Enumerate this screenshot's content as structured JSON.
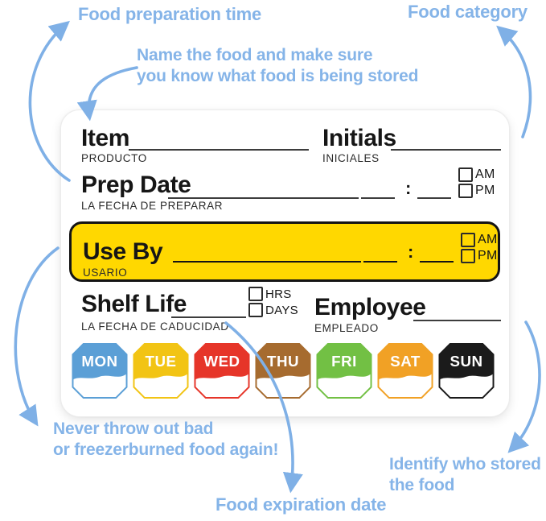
{
  "annotations": {
    "food_preparation_time": "Food preparation time",
    "food_category": "Food category",
    "name_food_line1": "Name the food and make sure",
    "name_food_line2": "you know what food is being stored",
    "never_throw_line1": "Never throw out bad",
    "never_throw_line2": "or freezerburned food again!",
    "identify_line1": "Identify who stored",
    "identify_line2": "the food",
    "food_expiration_date": "Food expiration date"
  },
  "label": {
    "item": "Item",
    "item_es": "PRODUCTO",
    "initials": "Initials",
    "initials_es": "INICIALES",
    "prep_date": "Prep Date",
    "prep_date_es": "LA FECHA DE PREPARAR",
    "use_by": "Use By",
    "use_by_es": "USARIO",
    "shelf_life": "Shelf Life",
    "shelf_life_es": "LA FECHA DE CADUCIDAD",
    "employee": "Employee",
    "employee_es": "EMPLEADO",
    "am": "AM",
    "pm": "PM",
    "hrs": "HRS",
    "days_unit": "DAYS",
    "time_separator": ":"
  },
  "days": [
    {
      "label": "MON",
      "color": "#5b9fd6"
    },
    {
      "label": "TUE",
      "color": "#f2c414"
    },
    {
      "label": "WED",
      "color": "#e63529"
    },
    {
      "label": "THU",
      "color": "#a66b2f"
    },
    {
      "label": "FRI",
      "color": "#72c044"
    },
    {
      "label": "SAT",
      "color": "#f1a125"
    },
    {
      "label": "SUN",
      "color": "#1b1b1b"
    }
  ],
  "colors": {
    "annotation_text": "#85b4e8",
    "arrow": "#7fb0e6",
    "use_by_bg": "#ffd800",
    "ink": "#161616"
  }
}
